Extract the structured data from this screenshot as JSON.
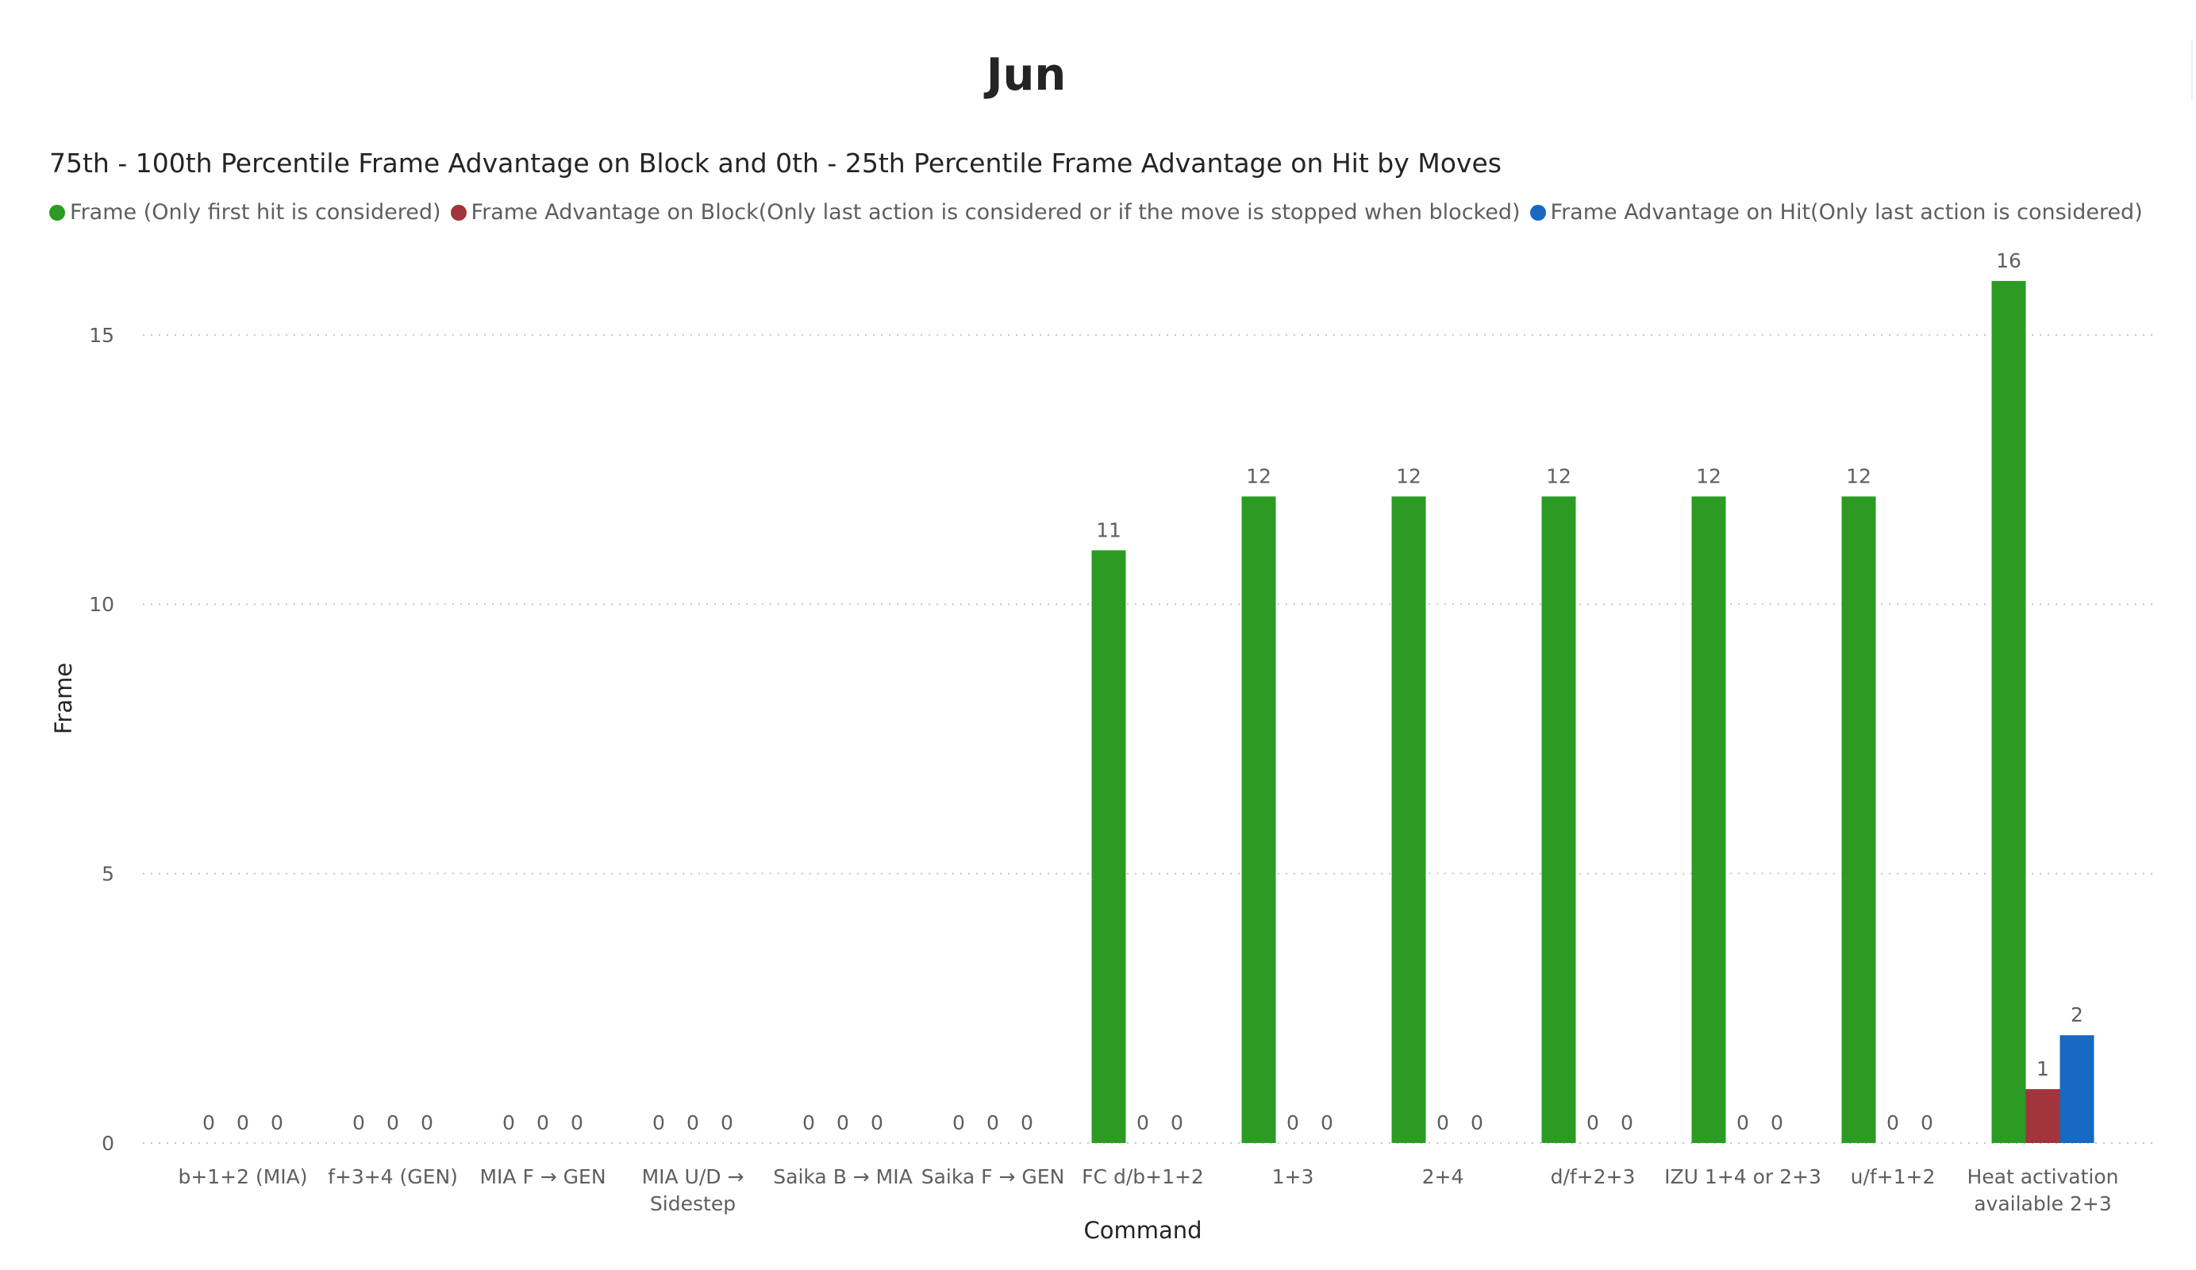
{
  "page": {
    "title": "Jun"
  },
  "chart_data": {
    "type": "bar",
    "title": "75th - 100th Percentile Frame Advantage on Block and 0th - 25th Percentile Frame Advantage on Hit by Moves",
    "xlabel": "Command",
    "ylabel": "Frame",
    "ylim": [
      0,
      16.5
    ],
    "yticks": [
      0,
      5,
      10,
      15
    ],
    "grid": true,
    "legend_position": "top-left",
    "categories": [
      [
        "b+1+2 (MIA)"
      ],
      [
        "f+3+4 (GEN)"
      ],
      [
        "MIA F → GEN"
      ],
      [
        "MIA U/D →",
        "Sidestep"
      ],
      [
        "Saika B → MIA"
      ],
      [
        "Saika F → GEN"
      ],
      [
        "FC d/b+1+2"
      ],
      [
        "1+3"
      ],
      [
        "2+4"
      ],
      [
        "d/f+2+3"
      ],
      [
        "IZU 1+4 or 2+3"
      ],
      [
        "u/f+1+2"
      ],
      [
        "Heat activation",
        "available 2+3"
      ]
    ],
    "series": [
      {
        "name": "Frame (Only first hit is considered)",
        "color": "#2b9b23",
        "values": [
          0,
          0,
          0,
          0,
          0,
          0,
          11,
          12,
          12,
          12,
          12,
          12,
          16
        ]
      },
      {
        "name": "Frame Advantage on Block(Only last action is considered or if the move is stopped when blocked)",
        "color": "#a1343c",
        "values": [
          0,
          0,
          0,
          0,
          0,
          0,
          0,
          0,
          0,
          0,
          0,
          0,
          1
        ]
      },
      {
        "name": "Frame Advantage on Hit(Only last action is considered)",
        "color": "#1769c1",
        "values": [
          0,
          0,
          0,
          0,
          0,
          0,
          0,
          0,
          0,
          0,
          0,
          0,
          2
        ]
      }
    ]
  }
}
